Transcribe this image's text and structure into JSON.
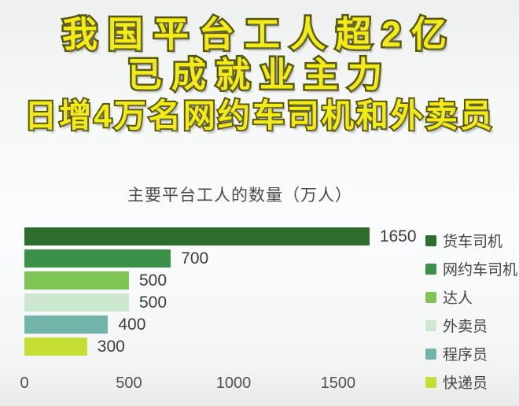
{
  "headline": {
    "line1": "我国平台工人超2亿",
    "line2": "已成就业主力",
    "line3": "日增4万名网约车司机和外卖员",
    "text_color": "#f3ea16",
    "outline_color": "#56560a"
  },
  "chart_data": {
    "type": "bar",
    "orientation": "horizontal",
    "title": "主要平台工人的数量（万人）",
    "categories": [
      "货车司机",
      "网约车司机",
      "达人",
      "外卖员",
      "程序员",
      "快递员"
    ],
    "values": [
      1650,
      700,
      500,
      500,
      400,
      300
    ],
    "bar_colors": [
      "#2d6e2c",
      "#3b9148",
      "#7ec553",
      "#cde8cf",
      "#72b4a9",
      "#c6dd33"
    ],
    "x_ticks": [
      0,
      500,
      1000,
      1500
    ],
    "xlim": [
      0,
      1880
    ],
    "grid": false,
    "legend_position": "right",
    "value_label_color": "#3b3d3c",
    "tick_label_color": "#4f5254"
  }
}
